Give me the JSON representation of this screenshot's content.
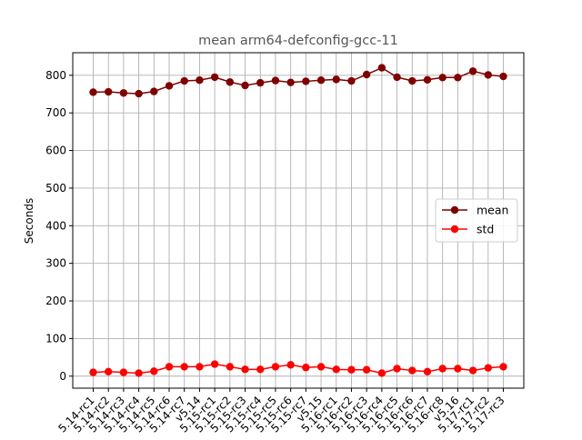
{
  "chart_data": {
    "type": "line",
    "title": "mean arm64-defconfig-gcc-11",
    "xlabel": "",
    "ylabel": "Seconds",
    "categories": [
      "5.14-rc1",
      "5.14-rc2",
      "5.14-rc3",
      "5.14-rc4",
      "5.14-rc5",
      "5.14-rc6",
      "5.14-rc7",
      "v5.14",
      "5.15-rc1",
      "5.15-rc2",
      "5.15-rc3",
      "5.15-rc4",
      "5.15-rc5",
      "5.15-rc6",
      "5.15-rc7",
      "v5.15",
      "5.16-rc1",
      "5.16-rc2",
      "5.16-rc3",
      "5.16-rc4",
      "5.16-rc5",
      "5.16-rc6",
      "5.16-rc7",
      "5.16-rc8",
      "v5.16",
      "5.17-rc1",
      "5.17-rc2",
      "5.17-rc3"
    ],
    "series": [
      {
        "name": "mean",
        "color": "#7f0000",
        "values": [
          755,
          756,
          753,
          751,
          757,
          772,
          785,
          787,
          795,
          782,
          773,
          780,
          786,
          781,
          784,
          787,
          789,
          785,
          802,
          820,
          795,
          785,
          788,
          794,
          794,
          811,
          801,
          797
        ]
      },
      {
        "name": "std",
        "color": "#ff0000",
        "values": [
          10,
          12,
          10,
          8,
          13,
          25,
          25,
          25,
          32,
          25,
          18,
          18,
          25,
          30,
          23,
          25,
          18,
          17,
          17,
          8,
          20,
          15,
          12,
          20,
          20,
          15,
          22,
          25
        ]
      }
    ],
    "ylim": [
      -32,
      860
    ],
    "yticks": [
      0,
      100,
      200,
      300,
      400,
      500,
      600,
      700,
      800
    ],
    "grid": true,
    "legend_position": "center-right"
  }
}
